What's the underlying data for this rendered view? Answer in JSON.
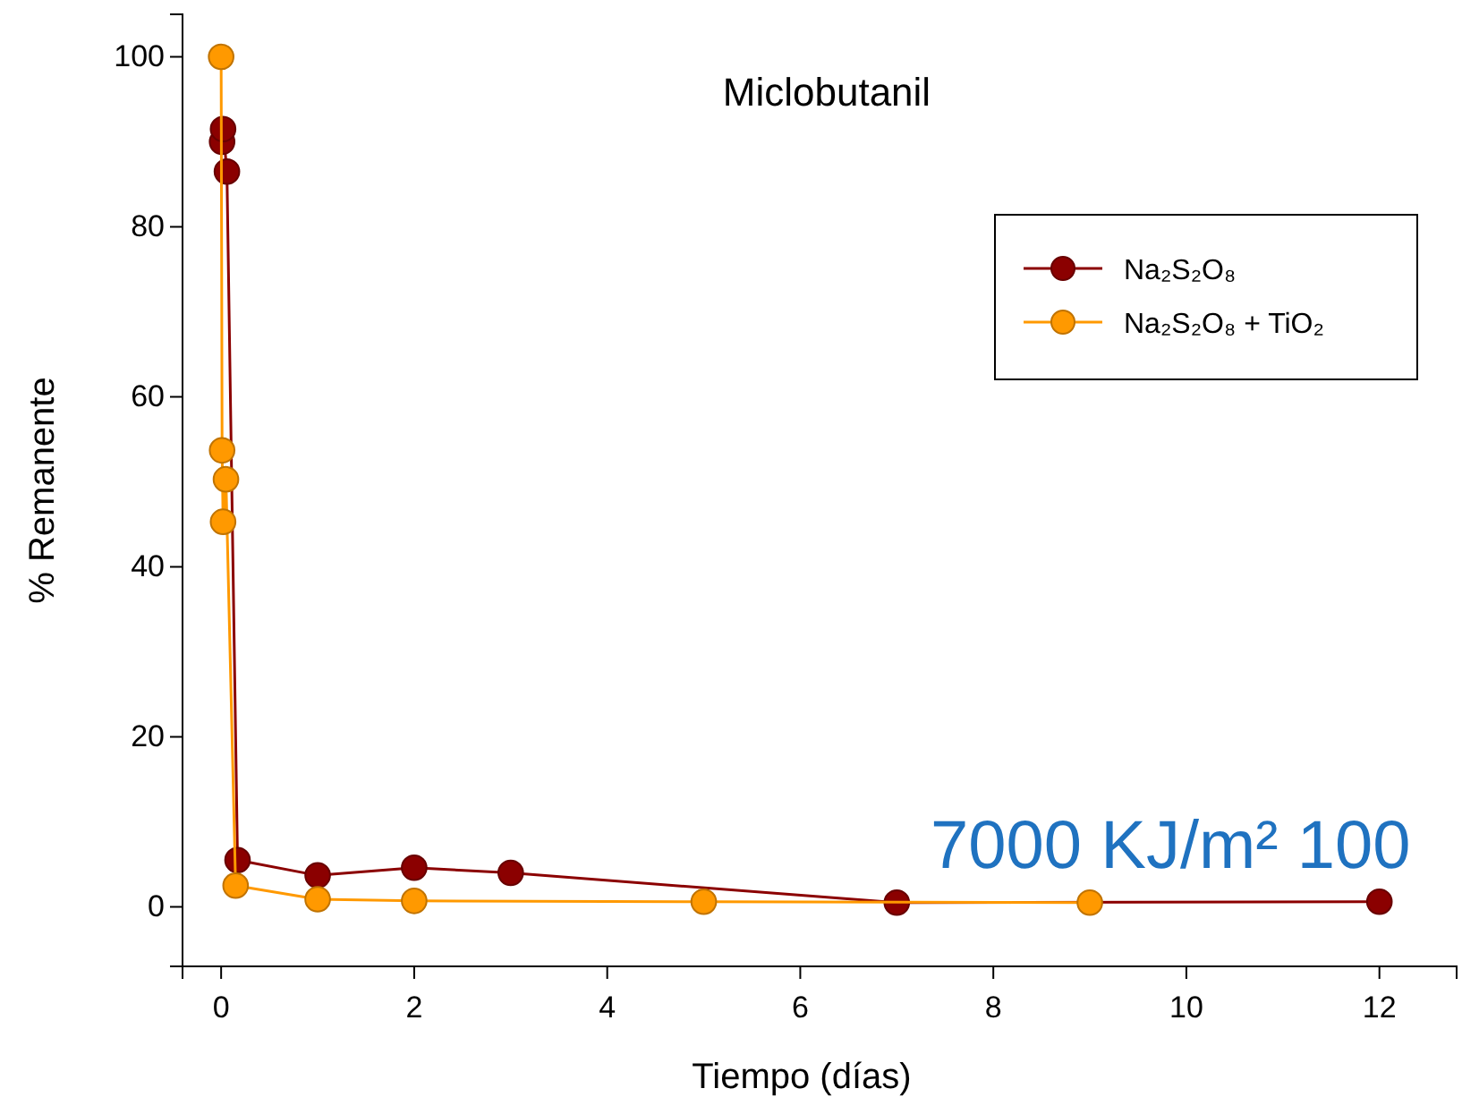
{
  "chart_data": {
    "type": "line",
    "title": "Miclobutanil",
    "xlabel": "Tiempo (días)",
    "ylabel": "% Remanente",
    "xlim": [
      -0.4,
      12.8
    ],
    "xticks": [
      0,
      2,
      4,
      6,
      8,
      10,
      12
    ],
    "ylim": [
      -7,
      105
    ],
    "yticks": [
      0,
      20,
      40,
      60,
      80,
      100
    ],
    "marker": "circle",
    "legend": "top right",
    "grid": false,
    "annotations": [
      "7000 KJ/m² 100"
    ],
    "series": [
      {
        "name": "Na₂S₂O₈",
        "color": "#8b0000",
        "x": [
          0.01,
          0.02,
          0.06,
          0.17,
          1,
          2,
          3,
          7,
          12
        ],
        "values": [
          90,
          91.5,
          86.5,
          5.5,
          3.7,
          4.6,
          4.0,
          0.5,
          0.6
        ]
      },
      {
        "name": "Na₂S₂O₈ + TiO₂",
        "color": "#ff9900",
        "x": [
          0,
          0.01,
          0.02,
          0.05,
          0.15,
          1,
          2,
          5,
          9
        ],
        "values": [
          100,
          53.7,
          45.3,
          50.3,
          2.5,
          0.9,
          0.7,
          0.6,
          0.5
        ]
      }
    ]
  }
}
